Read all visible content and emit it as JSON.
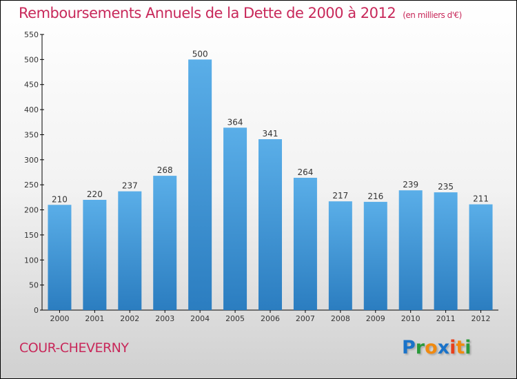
{
  "chart_data": {
    "type": "bar",
    "title": "Remboursements Annuels de la Dette de 2000 à 2012",
    "unit": "(en milliers d'€)",
    "categories": [
      "2000",
      "2001",
      "2002",
      "2003",
      "2004",
      "2005",
      "2006",
      "2007",
      "2008",
      "2009",
      "2010",
      "2011",
      "2012"
    ],
    "values": [
      210,
      220,
      237,
      268,
      500,
      364,
      341,
      264,
      217,
      216,
      239,
      235,
      211
    ],
    "ylim": [
      0,
      550
    ],
    "yticks": [
      0,
      50,
      100,
      150,
      200,
      250,
      300,
      350,
      400,
      450,
      500,
      550
    ],
    "xlabel": "",
    "ylabel": "",
    "bar_color": "#4a9fe0",
    "grid": false
  },
  "commune": "COUR-CHEVERNY",
  "logo": {
    "text": "Proxiti",
    "letters": [
      [
        "P",
        "#1a73c9"
      ],
      [
        "r",
        "#2a9a3a"
      ],
      [
        "o",
        "#f08a10"
      ],
      [
        "x",
        "#1a73c9"
      ],
      [
        "i",
        "#e8401c"
      ],
      [
        "t",
        "#f08a10"
      ],
      [
        "i",
        "#2a9a3a"
      ]
    ]
  },
  "colors": {
    "title": "#c8285a"
  }
}
